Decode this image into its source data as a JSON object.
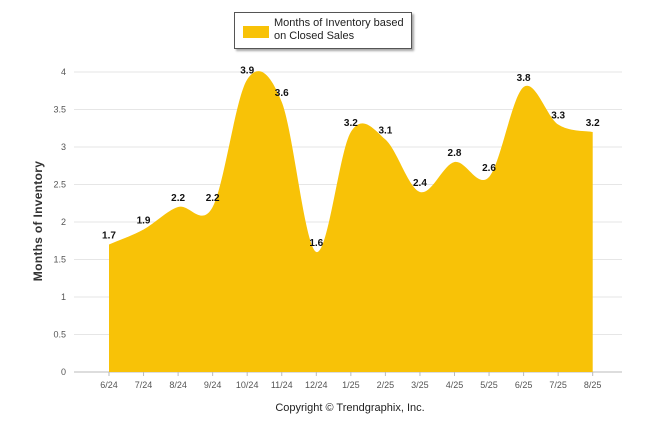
{
  "chart_data": {
    "type": "area",
    "categories": [
      "6/24",
      "7/24",
      "8/24",
      "9/24",
      "10/24",
      "11/24",
      "12/24",
      "1/25",
      "2/25",
      "3/25",
      "4/25",
      "5/25",
      "6/25",
      "7/25",
      "8/25"
    ],
    "series": [
      {
        "name": "Months of Inventory based on Closed Sales",
        "values": [
          1.7,
          1.9,
          2.2,
          2.2,
          3.9,
          3.6,
          1.6,
          3.2,
          3.1,
          2.4,
          2.8,
          2.6,
          3.8,
          3.3,
          3.2
        ],
        "labels": [
          "1.7",
          "1.9",
          "2.2",
          "2.2",
          "3.9",
          "3.6",
          "1.6",
          "3.2",
          "3.1",
          "2.4",
          "2.8",
          "2.6",
          "3.8",
          "3.3",
          "3.2"
        ]
      }
    ],
    "ylabel": "Months of Inventory",
    "ylim": [
      0,
      4
    ],
    "yticks": [
      "0",
      "0.5",
      "1",
      "1.5",
      "2",
      "2.5",
      "3",
      "3.5",
      "4"
    ],
    "grid": true,
    "legend_position": "top-center",
    "fill_color": "#F8C207"
  },
  "legend": {
    "label": "Months of Inventory based on Closed Sales"
  },
  "footer": {
    "copyright": "Copyright © Trendgraphix, Inc."
  }
}
